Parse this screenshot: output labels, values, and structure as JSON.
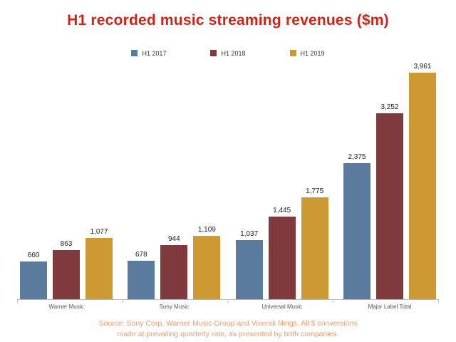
{
  "colors": {
    "title_red": "#cd2418",
    "source_orange": "#ea9c6e",
    "axis_gray": "#bbbbbb",
    "series_2017_blue": "#5a7a9e",
    "series_2018_maroon": "#7f3a3e",
    "series_2019_gold": "#cc9933"
  },
  "chart_data": {
    "type": "bar",
    "title": "H1 recorded music streaming revenues ($m)",
    "categories": [
      "Warner Music",
      "Sony Music",
      "Universal Music",
      "Major Label Total"
    ],
    "series": [
      {
        "name": "H1 2017",
        "color": "#5a7a9e",
        "values": [
          660,
          678,
          1037,
          2375
        ]
      },
      {
        "name": "H1 2018",
        "color": "#7f3a3e",
        "values": [
          863,
          944,
          1445,
          3252
        ]
      },
      {
        "name": "H1 2019",
        "color": "#cc9933",
        "values": [
          1077,
          1109,
          1775,
          3961
        ]
      }
    ],
    "ylim": [
      0,
      3961
    ],
    "xlabel": "",
    "ylabel": "",
    "grid": false,
    "legend_position": "top",
    "value_labels": true,
    "source_lines": [
      "Source: Sony Corp, Warner Music Group and Vivendi filings. All $ conversions",
      "made at prevailing quarterly rate, as presented by both companies."
    ]
  }
}
